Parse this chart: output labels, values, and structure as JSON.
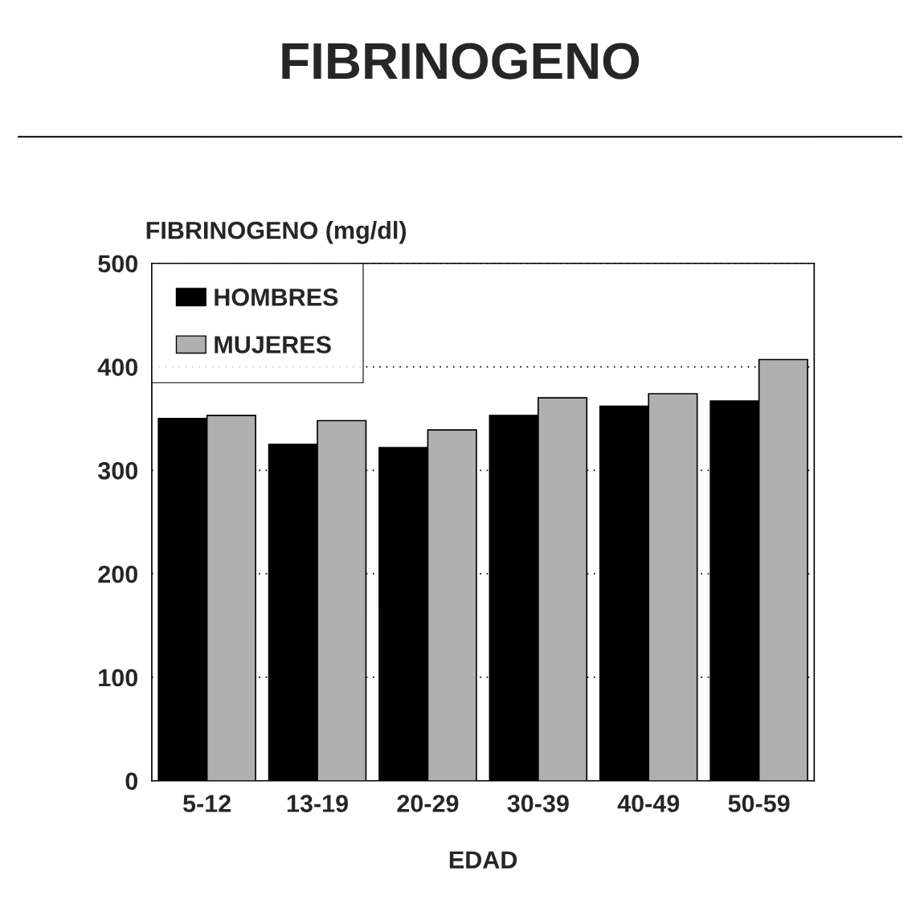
{
  "chart_data": {
    "type": "bar",
    "title": "FIBRINOGENO",
    "ylabel": "FIBRINOGENO (mg/dl)",
    "xlabel": "EDAD",
    "categories": [
      "5-12",
      "13-19",
      "20-29",
      "30-39",
      "40-49",
      "50-59"
    ],
    "series": [
      {
        "name": "HOMBRES",
        "color": "#000000",
        "values": [
          350,
          325,
          322,
          353,
          362,
          367
        ]
      },
      {
        "name": "MUJERES",
        "color": "#b0b0b0",
        "values": [
          353,
          348,
          339,
          370,
          374,
          407
        ]
      }
    ],
    "ylim": [
      0,
      500
    ],
    "yticks": [
      0,
      100,
      200,
      300,
      400,
      500
    ],
    "grid": "y",
    "legend": "top left"
  }
}
